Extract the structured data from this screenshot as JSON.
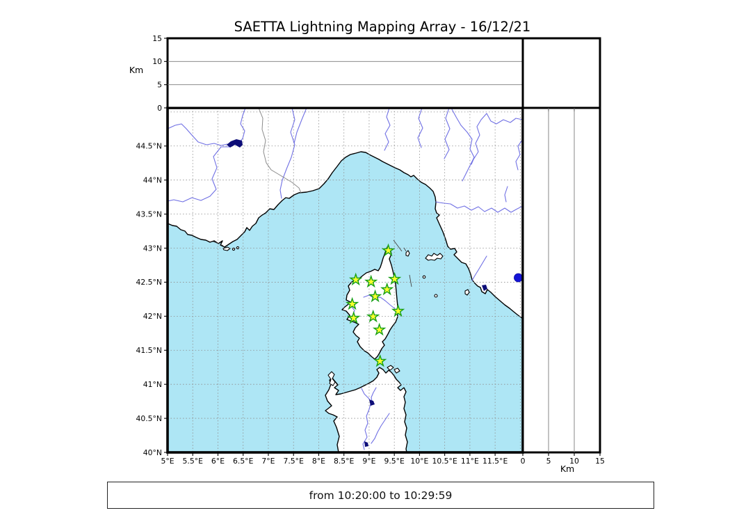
{
  "title": "SAETTA Lightning Mapping Array - 16/12/21",
  "time_range_label": "from 10:20:00 to 10:29:59",
  "altitude_panel": {
    "axis_label": "Km",
    "tick_labels": [
      "15",
      "10",
      "5",
      "0"
    ],
    "tick_values": [
      15,
      10,
      5,
      0
    ],
    "range": [
      0,
      15
    ],
    "gridline_values": [
      5,
      10
    ]
  },
  "right_panel": {
    "axis_label": "Km",
    "tick_labels": [
      "0",
      "5",
      "10",
      "15"
    ],
    "tick_values": [
      0,
      5,
      10,
      15
    ],
    "range": [
      0,
      15
    ],
    "gridline_values": [
      5,
      10
    ]
  },
  "map_panel": {
    "lon_range": [
      5.0,
      12.05
    ],
    "lat_range": [
      40.0,
      45.06
    ],
    "grid_step_deg": 0.5,
    "lon_tick_values": [
      5,
      5.5,
      6,
      6.5,
      7,
      7.5,
      8,
      8.5,
      9,
      9.5,
      10,
      10.5,
      11,
      11.5
    ],
    "lon_tick_labels": [
      "5°E",
      "5.5°E",
      "6°E",
      "6.5°E",
      "7°E",
      "7.5°E",
      "8°E",
      "8.5°E",
      "9°E",
      "9.5°E",
      "10°E",
      "10.5°E",
      "11°E",
      "11.5°E"
    ],
    "lat_tick_values": [
      44.5,
      44,
      43.5,
      43,
      42.5,
      42,
      41.5,
      41,
      40.5,
      40
    ],
    "lat_tick_labels": [
      "44.5°N",
      "44°N",
      "43.5°N",
      "43°N",
      "42.5°N",
      "42°N",
      "41.5°N",
      "41°N",
      "40.5°N",
      "40°N"
    ]
  },
  "chart_data": {
    "type": "map",
    "title": "SAETTA Lightning Mapping Array - 16/12/21",
    "time_window": {
      "from": "10:20:00",
      "to": "10:29:59"
    },
    "extent": {
      "lon": [
        5.0,
        12.05
      ],
      "lat": [
        40.0,
        45.06
      ]
    },
    "altitude_km_range": [
      0,
      15
    ],
    "stations": [
      {
        "lon": 9.38,
        "lat": 42.965
      },
      {
        "lon": 8.735,
        "lat": 42.536
      },
      {
        "lon": 9.038,
        "lat": 42.505
      },
      {
        "lon": 9.506,
        "lat": 42.546
      },
      {
        "lon": 9.355,
        "lat": 42.392
      },
      {
        "lon": 9.12,
        "lat": 42.29
      },
      {
        "lon": 8.665,
        "lat": 42.178
      },
      {
        "lon": 9.575,
        "lat": 42.075
      },
      {
        "lon": 8.693,
        "lat": 41.973
      },
      {
        "lon": 9.079,
        "lat": 41.994
      },
      {
        "lon": 9.203,
        "lat": 41.8
      },
      {
        "lon": 9.217,
        "lat": 41.34
      }
    ],
    "points": [
      {
        "lon": 11.96,
        "lat": 42.566,
        "alt_km": 0
      }
    ]
  },
  "colors": {
    "sea": "#aee6f5",
    "land": "#ffffff",
    "coast": "#000000",
    "river": "#7070e4",
    "border_line": "#8a8a8a",
    "lake": "#0d0d78",
    "grid": "#909090",
    "panel_gridline": "#7a7a7a",
    "station_fill": "#ffff2e",
    "station_edge": "#17a017",
    "flash": "#1414d6"
  }
}
